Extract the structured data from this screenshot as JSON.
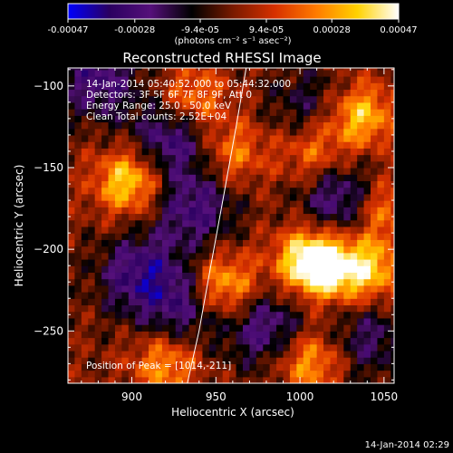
{
  "colorbar": {
    "tick_labels": [
      "-0.00047",
      "-0.00028",
      "-9.4e-05",
      "9.4e-05",
      "0.00028",
      "0.00047"
    ],
    "ticks": [
      -0.00047,
      -0.00028,
      -9.4e-05,
      9.4e-05,
      0.00028,
      0.00047
    ],
    "range": [
      -0.00047,
      0.00047
    ],
    "units": "(photons cm⁻² s⁻¹ asec⁻²)",
    "colormap": [
      "#0000ff",
      "#2a0060",
      "#55107a",
      "#000000",
      "#7a1a00",
      "#d63000",
      "#ff7a00",
      "#ffd200",
      "#ffffff"
    ]
  },
  "annotations": {
    "time_range": "14-Jan-2014 05:40:52.000 to 05:44:32.000",
    "detectors": "Detectors: 3F 5F 6F 7F 8F 9F, Att 0",
    "energy_range": "Energy Range: 25.0 - 50.0 keV",
    "clean": "Clean     Total counts: 2.52E+04",
    "peak": "Position of Peak = [1014,-211]",
    "timestamp": "14-Jan-2014 02:29"
  },
  "chart_data": {
    "type": "heatmap",
    "title": "Reconstructed RHESSI Image",
    "xlabel": "Heliocentric X (arcsec)",
    "ylabel": "Heliocentric Y (arcsec)",
    "xlim": [
      862,
      1056
    ],
    "ylim": [
      -282,
      -89
    ],
    "x_ticks": [
      900,
      950,
      1000,
      1050
    ],
    "y_ticks": [
      -100,
      -150,
      -200,
      -250
    ],
    "peak": [
      1014,
      -211
    ],
    "grid": false,
    "limb_curve": {
      "x": [
        968,
        962,
        955,
        947,
        940,
        933
      ],
      "y": [
        -89,
        -125,
        -165,
        -210,
        -250,
        -282
      ]
    },
    "hotspots": [
      {
        "x": 898,
        "y": -158,
        "level": 1.0
      },
      {
        "x": 936,
        "y": -108,
        "level": 0.7
      },
      {
        "x": 955,
        "y": -222,
        "level": 0.9
      },
      {
        "x": 1004,
        "y": -205,
        "level": 0.8
      },
      {
        "x": 1014,
        "y": -211,
        "level": 1.0
      },
      {
        "x": 1036,
        "y": -118,
        "level": 0.9
      },
      {
        "x": 1041,
        "y": -212,
        "level": 0.9
      },
      {
        "x": 1006,
        "y": -268,
        "level": 0.8
      },
      {
        "x": 1008,
        "y": -140,
        "level": 0.6
      },
      {
        "x": 920,
        "y": -270,
        "level": 0.7
      },
      {
        "x": 1048,
        "y": -175,
        "level": 0.7
      },
      {
        "x": 960,
        "y": -140,
        "level": 0.6
      }
    ],
    "coldspots": [
      {
        "x": 880,
        "y": -96,
        "level": 0.8
      },
      {
        "x": 924,
        "y": -132,
        "level": 0.9
      },
      {
        "x": 937,
        "y": -175,
        "level": 0.8
      },
      {
        "x": 905,
        "y": -215,
        "level": 0.9
      },
      {
        "x": 930,
        "y": -235,
        "level": 0.7
      },
      {
        "x": 1005,
        "y": -112,
        "level": 0.5
      },
      {
        "x": 1025,
        "y": -170,
        "level": 0.9
      },
      {
        "x": 980,
        "y": -248,
        "level": 0.8
      },
      {
        "x": 1040,
        "y": -255,
        "level": 0.6
      }
    ]
  }
}
